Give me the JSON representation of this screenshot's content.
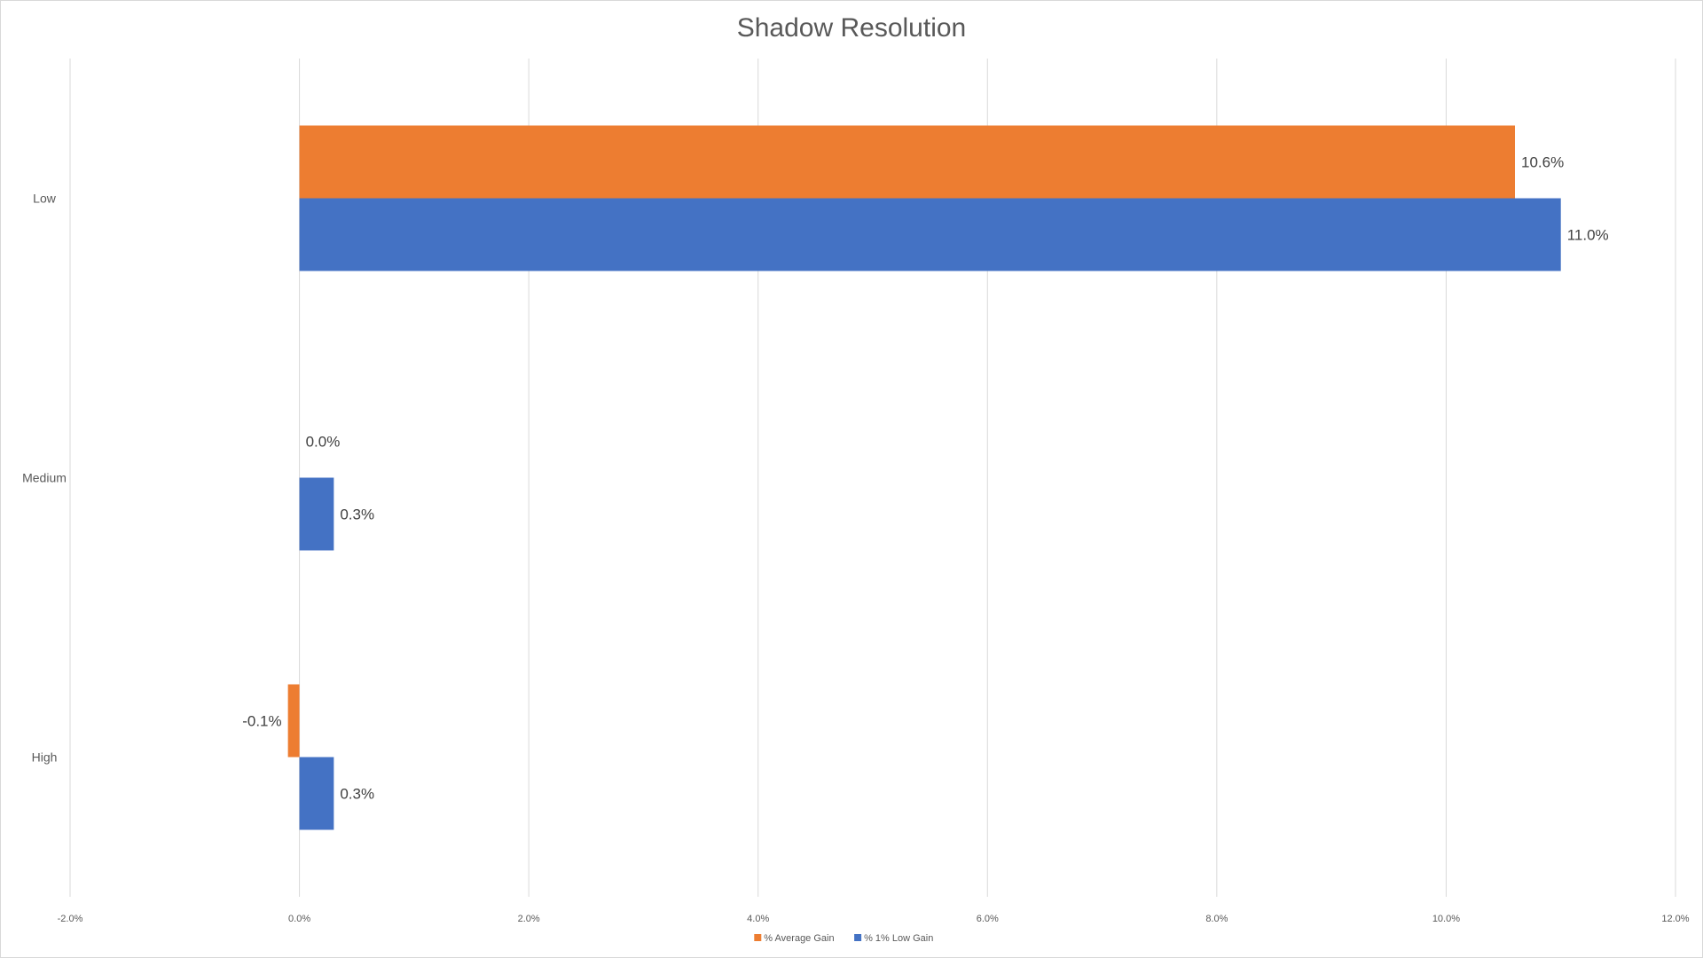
{
  "chart_data": {
    "type": "bar",
    "orientation": "horizontal",
    "title": "Shadow Resolution",
    "xlabel": "",
    "ylabel": "",
    "categories": [
      "Low",
      "Medium",
      "High"
    ],
    "series": [
      {
        "name": "% Average Gain",
        "color": "#ED7D31",
        "values": [
          10.6,
          0.0,
          -0.1
        ],
        "labels": [
          "10.6%",
          "0.0%",
          "-0.1%"
        ]
      },
      {
        "name": "% 1% Low Gain",
        "color": "#4472C4",
        "values": [
          11.0,
          0.3,
          0.3
        ],
        "labels": [
          "11.0%",
          "0.3%",
          "0.3%"
        ]
      }
    ],
    "xlim": [
      -2.0,
      12.0
    ],
    "xticks": [
      -2.0,
      0.0,
      2.0,
      4.0,
      6.0,
      8.0,
      10.0,
      12.0
    ],
    "xtick_labels": [
      "-2.0%",
      "0.0%",
      "2.0%",
      "4.0%",
      "6.0%",
      "8.0%",
      "10.0%",
      "12.0%"
    ],
    "grid": true,
    "legend_position": "bottom"
  }
}
